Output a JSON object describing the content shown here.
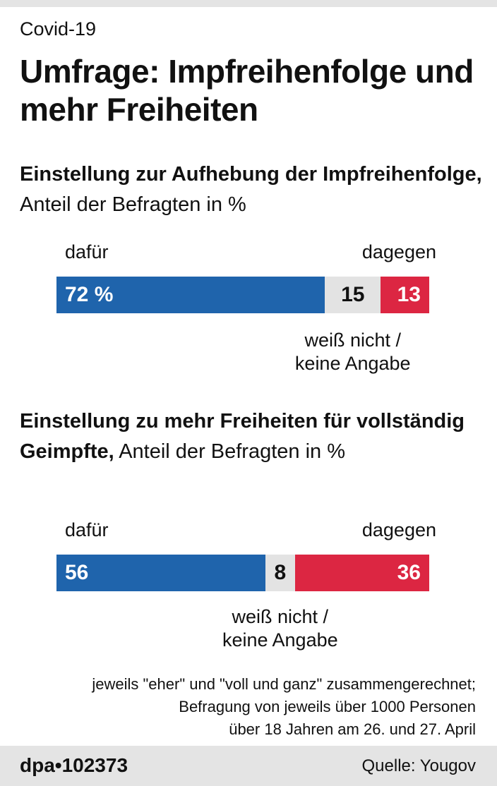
{
  "header": {
    "kicker": "Covid-19",
    "title": "Umfrage: Impfreihenfolge und mehr Freiheiten"
  },
  "chart_data": [
    {
      "type": "bar",
      "orientation": "horizontal-stacked",
      "title_bold": "Einstellung zur Aufhebung der Impfreihenfolge,",
      "title_rest": " Anteil der Befragten in %",
      "label_left": "dafür",
      "label_right": "dagegen",
      "label_bottom": [
        "weiß nicht /",
        "keine Angabe"
      ],
      "series": [
        {
          "name": "dafür",
          "value": 72,
          "display": "72 %",
          "color": "#1f64ac",
          "text_color": "#ffffff"
        },
        {
          "name": "weiß nicht / keine Angabe",
          "value": 15,
          "display": "15",
          "color": "#e3e3e3",
          "text_color": "#111111"
        },
        {
          "name": "dagegen",
          "value": 13,
          "display": "13",
          "color": "#dc2642",
          "text_color": "#ffffff"
        }
      ],
      "total": 100
    },
    {
      "type": "bar",
      "orientation": "horizontal-stacked",
      "title_bold": "Einstellung zu mehr Freiheiten für vollständig Geimpfte,",
      "title_rest": " Anteil der Befragten in %",
      "label_left": "dafür",
      "label_right": "dagegen",
      "label_bottom": [
        "weiß nicht /",
        "keine Angabe"
      ],
      "series": [
        {
          "name": "dafür",
          "value": 56,
          "display": "56",
          "color": "#1f64ac",
          "text_color": "#ffffff"
        },
        {
          "name": "weiß nicht / keine Angabe",
          "value": 8,
          "display": "8",
          "color": "#e3e3e3",
          "text_color": "#111111"
        },
        {
          "name": "dagegen",
          "value": 36,
          "display": "36",
          "color": "#dc2642",
          "text_color": "#ffffff"
        }
      ],
      "total": 100
    }
  ],
  "footnote": [
    "jeweils \"eher\" und \"voll und ganz\" zusammengerechnet;",
    "Befragung von jeweils über 1000 Personen",
    "über 18 Jahren am 26. und 27. April"
  ],
  "footer": {
    "logo": "dpa•102373",
    "source": "Quelle: Yougov"
  }
}
